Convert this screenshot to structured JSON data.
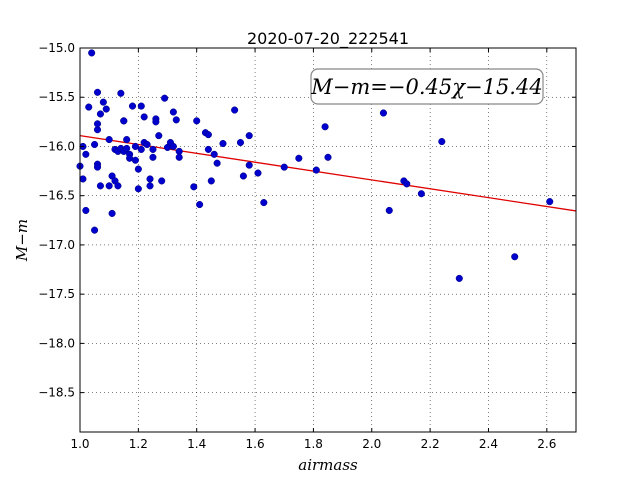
{
  "chart_data": {
    "type": "scatter",
    "title": "2020-07-20_222541",
    "xlabel": "airmass",
    "ylabel": "M−m",
    "xlim": [
      1.0,
      2.7
    ],
    "ylim": [
      -15.0,
      -18.9
    ],
    "y_inverted": true,
    "grid": true,
    "x_ticks": [
      1.0,
      1.2,
      1.4,
      1.6,
      1.8,
      2.0,
      2.2,
      2.4,
      2.6
    ],
    "x_tick_labels": [
      "1.0",
      "1.2",
      "1.4",
      "1.6",
      "1.8",
      "2.0",
      "2.2",
      "2.4",
      "2.6"
    ],
    "y_ticks": [
      -15.0,
      -15.5,
      -16.0,
      -16.5,
      -17.0,
      -17.5,
      -18.0,
      -18.5
    ],
    "y_tick_labels": [
      "−15.0",
      "−15.5",
      "−16.0",
      "−16.5",
      "−17.0",
      "−17.5",
      "−18.0",
      "−18.5"
    ],
    "annotation": "M−m=−0.45χ−15.44",
    "fit": {
      "slope": -0.45,
      "intercept": -15.44,
      "color": "#e00000"
    },
    "point_color": "#0000cc",
    "points": [
      [
        1.0,
        -16.2
      ],
      [
        1.01,
        -16.33
      ],
      [
        1.01,
        -16.0
      ],
      [
        1.02,
        -16.08
      ],
      [
        1.02,
        -16.65
      ],
      [
        1.03,
        -15.6
      ],
      [
        1.04,
        -15.05
      ],
      [
        1.05,
        -16.85
      ],
      [
        1.05,
        -15.98
      ],
      [
        1.06,
        -15.83
      ],
      [
        1.06,
        -15.77
      ],
      [
        1.06,
        -15.45
      ],
      [
        1.06,
        -16.18
      ],
      [
        1.06,
        -16.21
      ],
      [
        1.07,
        -15.67
      ],
      [
        1.07,
        -16.4
      ],
      [
        1.08,
        -15.55
      ],
      [
        1.09,
        -15.62
      ],
      [
        1.1,
        -16.4
      ],
      [
        1.1,
        -15.93
      ],
      [
        1.11,
        -16.3
      ],
      [
        1.11,
        -16.68
      ],
      [
        1.12,
        -16.35
      ],
      [
        1.12,
        -16.03
      ],
      [
        1.13,
        -16.05
      ],
      [
        1.13,
        -16.4
      ],
      [
        1.14,
        -16.02
      ],
      [
        1.14,
        -15.46
      ],
      [
        1.15,
        -15.74
      ],
      [
        1.15,
        -15.74
      ],
      [
        1.15,
        -16.05
      ],
      [
        1.16,
        -16.02
      ],
      [
        1.16,
        -15.93
      ],
      [
        1.17,
        -16.08
      ],
      [
        1.17,
        -16.12
      ],
      [
        1.18,
        -15.59
      ],
      [
        1.19,
        -16.0
      ],
      [
        1.19,
        -16.14
      ],
      [
        1.2,
        -16.23
      ],
      [
        1.2,
        -16.43
      ],
      [
        1.21,
        -16.03
      ],
      [
        1.21,
        -15.59
      ],
      [
        1.22,
        -15.7
      ],
      [
        1.22,
        -15.96
      ],
      [
        1.23,
        -15.98
      ],
      [
        1.24,
        -16.33
      ],
      [
        1.24,
        -16.4
      ],
      [
        1.25,
        -16.11
      ],
      [
        1.25,
        -16.03
      ],
      [
        1.26,
        -15.72
      ],
      [
        1.26,
        -15.75
      ],
      [
        1.27,
        -15.89
      ],
      [
        1.28,
        -16.35
      ],
      [
        1.29,
        -15.51
      ],
      [
        1.3,
        -16.01
      ],
      [
        1.31,
        -15.96
      ],
      [
        1.32,
        -16.0
      ],
      [
        1.32,
        -15.65
      ],
      [
        1.33,
        -15.73
      ],
      [
        1.34,
        -16.05
      ],
      [
        1.34,
        -16.11
      ],
      [
        1.39,
        -16.41
      ],
      [
        1.4,
        -15.74
      ],
      [
        1.41,
        -16.59
      ],
      [
        1.43,
        -15.86
      ],
      [
        1.44,
        -15.88
      ],
      [
        1.44,
        -16.03
      ],
      [
        1.45,
        -16.35
      ],
      [
        1.46,
        -16.08
      ],
      [
        1.47,
        -16.17
      ],
      [
        1.49,
        -15.97
      ],
      [
        1.53,
        -15.63
      ],
      [
        1.55,
        -15.96
      ],
      [
        1.56,
        -16.3
      ],
      [
        1.58,
        -16.19
      ],
      [
        1.58,
        -15.89
      ],
      [
        1.61,
        -16.27
      ],
      [
        1.63,
        -16.57
      ],
      [
        1.7,
        -16.21
      ],
      [
        1.75,
        -16.12
      ],
      [
        1.81,
        -16.24
      ],
      [
        1.84,
        -15.8
      ],
      [
        1.85,
        -16.11
      ],
      [
        2.04,
        -15.66
      ],
      [
        2.06,
        -16.65
      ],
      [
        2.11,
        -16.35
      ],
      [
        2.12,
        -16.38
      ],
      [
        2.17,
        -16.48
      ],
      [
        2.24,
        -15.95
      ],
      [
        2.3,
        -17.34
      ],
      [
        2.49,
        -17.12
      ],
      [
        2.61,
        -16.56
      ]
    ]
  }
}
